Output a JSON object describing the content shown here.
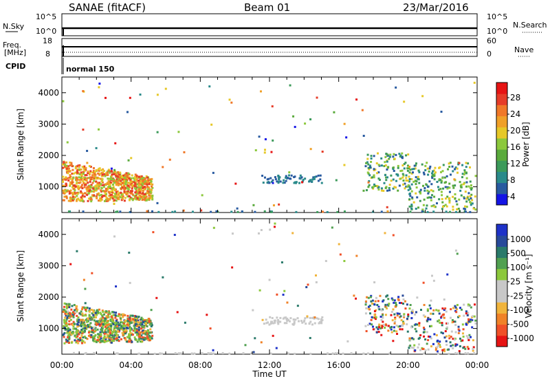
{
  "header": {
    "station": "SANAE (fitACF)",
    "beam": "Beam 01",
    "date": "23/Mar/2016"
  },
  "status_panels": {
    "nsky_label": "N.Sky",
    "nsky_ticks": [
      "10^5",
      "10^0"
    ],
    "nsearch_label": "N.Search",
    "nsearch_ticks": [
      "10^5",
      "10^0"
    ],
    "freq_label_1": "Freq.",
    "freq_label_2": "[MHz]",
    "freq_ticks": [
      "18",
      "8"
    ],
    "nave_label": "Nave",
    "nave_ticks": [
      "60",
      "0"
    ],
    "cpid_label": "CPID",
    "cpid_value": "normal 150"
  },
  "colors": {
    "power_scale": [
      "#1414e6",
      "#285aa0",
      "#2a8a8a",
      "#3c9a5a",
      "#5aaa3c",
      "#8cc83c",
      "#e6c828",
      "#f0a028",
      "#f07828",
      "#e63c28",
      "#e61414"
    ],
    "velocity_scale": [
      "#e61414",
      "#f05028",
      "#f08228",
      "#f0b43c",
      "#c8c8c8",
      "#c8c8c8",
      "#8cc83c",
      "#50a050",
      "#2a7a6a",
      "#284a9a",
      "#1e32c8"
    ]
  },
  "chart_data": [
    {
      "type": "heatmap",
      "title": "",
      "xlabel": "",
      "ylabel": "Slant Range [km]",
      "xlim": [
        "00:00",
        "24:00"
      ],
      "ylim": [
        180,
        4500
      ],
      "x_ticks": [],
      "y_ticks": [
        "1000",
        "2000",
        "3000",
        "4000"
      ],
      "colorbar": {
        "label": "Power [dB]",
        "ticks": [
          "28",
          "24",
          "20",
          "16",
          "12",
          "8",
          "4"
        ],
        "range": [
          0,
          30
        ]
      },
      "regions": [
        {
          "x_start": 0.0,
          "x_end": 5.2,
          "range_start": 350,
          "range_end": 1850,
          "value": "14-24 dB"
        },
        {
          "x_start": 11.5,
          "x_end": 15.0,
          "range_start": 1100,
          "range_end": 1400,
          "value": "6-9 dB"
        },
        {
          "x_start": 17.5,
          "x_end": 20.5,
          "range_start": 1000,
          "range_end": 2100,
          "value": "8-16 dB"
        },
        {
          "x_start": 20.5,
          "x_end": 24.0,
          "range_start": 300,
          "range_end": 1800,
          "value": "8-16 dB"
        }
      ]
    },
    {
      "type": "heatmap",
      "title": "",
      "xlabel": "Time UT",
      "ylabel": "Slant Range [km]",
      "xlim": [
        "00:00",
        "24:00"
      ],
      "ylim": [
        180,
        4500
      ],
      "x_ticks": [
        "00:00",
        "04:00",
        "08:00",
        "12:00",
        "16:00",
        "20:00",
        "00:00"
      ],
      "y_ticks": [
        "1000",
        "2000",
        "3000",
        "4000"
      ],
      "colorbar": {
        "label": "Velocity [m s⁻¹]",
        "ticks": [
          "1000",
          "500",
          "100",
          "25",
          "-25",
          "-100",
          "-500",
          "-1000"
        ]
      },
      "regions": [
        {
          "x_start": 0.0,
          "x_end": 5.2,
          "range_start": 350,
          "range_end": 1850,
          "value": "mixed ±100 to ±1000"
        },
        {
          "x_start": 11.5,
          "x_end": 15.0,
          "range_start": 1100,
          "range_end": 1400,
          "value": "-25 to 25"
        },
        {
          "x_start": 17.5,
          "x_end": 24.0,
          "range_start": 300,
          "range_end": 2100,
          "value": "mixed"
        }
      ]
    }
  ]
}
